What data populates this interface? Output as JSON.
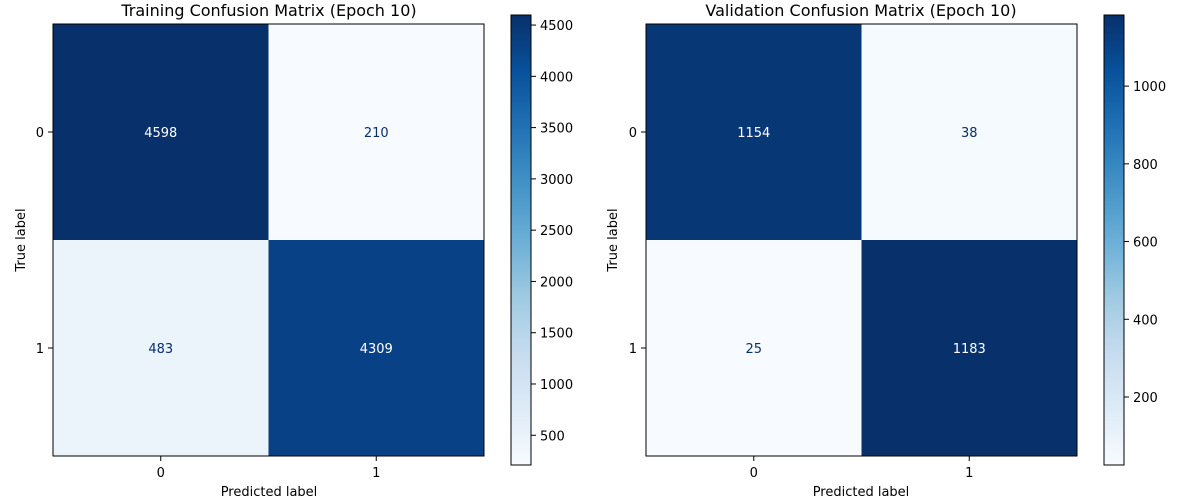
{
  "chart_data": [
    {
      "type": "heatmap",
      "title": "Training Confusion Matrix (Epoch 10)",
      "xlabel": "Predicted label",
      "ylabel": "True label",
      "x_categories": [
        "0",
        "1"
      ],
      "y_categories": [
        "0",
        "1"
      ],
      "values": [
        [
          4598,
          210
        ],
        [
          483,
          4309
        ]
      ],
      "colormap": "Blues",
      "colorbar_ticks": [
        "500",
        "1000",
        "1500",
        "2000",
        "2500",
        "3000",
        "3500",
        "4000",
        "4500"
      ],
      "colorbar_range": [
        210,
        4598
      ]
    },
    {
      "type": "heatmap",
      "title": "Validation Confusion Matrix (Epoch 10)",
      "xlabel": "Predicted label",
      "ylabel": "True label",
      "x_categories": [
        "0",
        "1"
      ],
      "y_categories": [
        "0",
        "1"
      ],
      "values": [
        [
          1154,
          38
        ],
        [
          25,
          1183
        ]
      ],
      "colormap": "Blues",
      "colorbar_ticks": [
        "200",
        "400",
        "600",
        "800",
        "1000"
      ],
      "colorbar_range": [
        25,
        1183
      ]
    }
  ],
  "colors": {
    "blues_light": "#f7fbff",
    "blues_dark": "#08306b",
    "text_on_light": "#08306b",
    "text_on_dark": "#ffffff",
    "axis": "#000000"
  }
}
